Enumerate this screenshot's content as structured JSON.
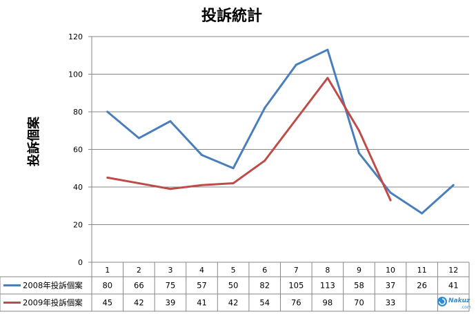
{
  "chart_data": {
    "type": "line",
    "title": "投訴統計",
    "xlabel": "",
    "ylabel": "投訴個案",
    "categories": [
      "1",
      "2",
      "3",
      "4",
      "5",
      "6",
      "7",
      "8",
      "9",
      "10",
      "11",
      "12"
    ],
    "ylim": [
      0,
      120
    ],
    "yticks": [
      0,
      20,
      40,
      60,
      80,
      100,
      120
    ],
    "grid": true,
    "legend": "data-table-left",
    "series": [
      {
        "name": "2008年投訴個案",
        "color": "#4a7ebb",
        "values": [
          80,
          66,
          75,
          57,
          50,
          82,
          105,
          113,
          58,
          37,
          26,
          41
        ]
      },
      {
        "name": "2009年投訴個案",
        "color": "#be4b48",
        "values": [
          45,
          42,
          39,
          41,
          42,
          54,
          76,
          98,
          70,
          33,
          null,
          null
        ]
      }
    ]
  },
  "watermark": {
    "brand": "Nakuz",
    "sub": ".com"
  }
}
